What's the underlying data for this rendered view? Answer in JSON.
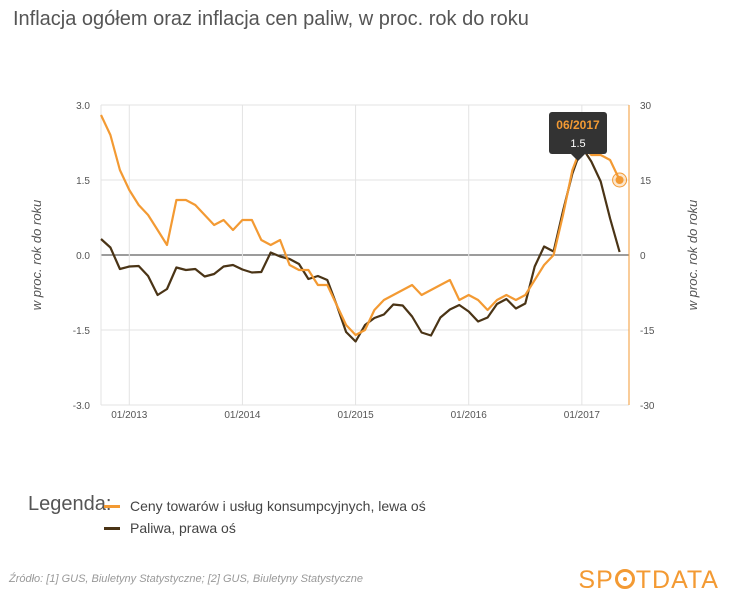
{
  "title": "Inflacja ogółem oraz inflacja cen paliw, w proc. rok do roku",
  "legend": {
    "heading": "Legenda:",
    "items": [
      {
        "label": "Ceny towarów i usług konsumpcyjnych, lewa oś",
        "color": "#f39a33"
      },
      {
        "label": "Paliwa, prawa oś",
        "color": "#4a3416"
      }
    ]
  },
  "source": "Źródło: [1] GUS, Biuletyny Statystyczne; [2] GUS, Biuletyny Statystyczne",
  "brand": {
    "before": "SP",
    "after": "TDATA"
  },
  "tooltip": {
    "date": "06/2017",
    "value": "1.5"
  },
  "colors": {
    "cpi": "#f39a33",
    "fuel": "#4a3416",
    "grid": "#e3e3e3",
    "zero": "#3a3a3a",
    "tooltip_bg": "#333333"
  },
  "chart_data": {
    "type": "line",
    "ylabel_left": "w proc. rok do roku",
    "ylabel_right": "w proc. rok do roku",
    "ylim_left": [
      -3.0,
      3.0
    ],
    "ylim_right": [
      -30,
      30
    ],
    "yticks_left": [
      "3.0",
      "1.5",
      "0.0",
      "-1.5",
      "-3.0"
    ],
    "yticks_right": [
      "30",
      "15",
      "0",
      "-15",
      "-30"
    ],
    "xticks": [
      "01/2013",
      "01/2014",
      "01/2015",
      "01/2016",
      "01/2017"
    ],
    "x_start": "10/2012",
    "x_end": "06/2017",
    "series": [
      {
        "name": "Ceny towarów i usług konsumpcyjnych, lewa oś",
        "axis": "left",
        "values": [
          2.8,
          2.4,
          1.7,
          1.3,
          1.0,
          0.8,
          0.5,
          0.2,
          1.1,
          1.1,
          1.0,
          0.8,
          0.6,
          0.7,
          0.5,
          0.7,
          0.7,
          0.3,
          0.2,
          0.3,
          -0.2,
          -0.3,
          -0.3,
          -0.6,
          -0.6,
          -1.0,
          -1.4,
          -1.6,
          -1.5,
          -1.1,
          -0.9,
          -0.8,
          -0.7,
          -0.6,
          -0.8,
          -0.7,
          -0.6,
          -0.5,
          -0.9,
          -0.8,
          -0.9,
          -1.1,
          -0.9,
          -0.8,
          -0.9,
          -0.8,
          -0.5,
          -0.2,
          0.0,
          0.8,
          1.7,
          2.2,
          2.0,
          2.0,
          1.9,
          1.5
        ]
      },
      {
        "name": "Paliwa, prawa oś",
        "axis": "right",
        "values": [
          3.2,
          1.5,
          -2.8,
          -2.3,
          -2.2,
          -4.2,
          -8.0,
          -6.8,
          -2.5,
          -3.0,
          -2.8,
          -4.3,
          -3.8,
          -2.3,
          -2.0,
          -2.9,
          -3.5,
          -3.4,
          0.5,
          -0.3,
          -0.8,
          -1.8,
          -4.8,
          -4.2,
          -5.0,
          -10.0,
          -15.4,
          -17.3,
          -14.0,
          -12.6,
          -11.9,
          -9.9,
          -10.1,
          -12.3,
          -15.5,
          -16.1,
          -12.5,
          -10.9,
          -10.0,
          -11.3,
          -13.3,
          -12.5,
          -9.8,
          -8.8,
          -10.7,
          -9.7,
          -2.3,
          1.7,
          0.7,
          8.8,
          16.3,
          21.6,
          18.7,
          14.7,
          7.3,
          0.6
        ]
      }
    ]
  }
}
